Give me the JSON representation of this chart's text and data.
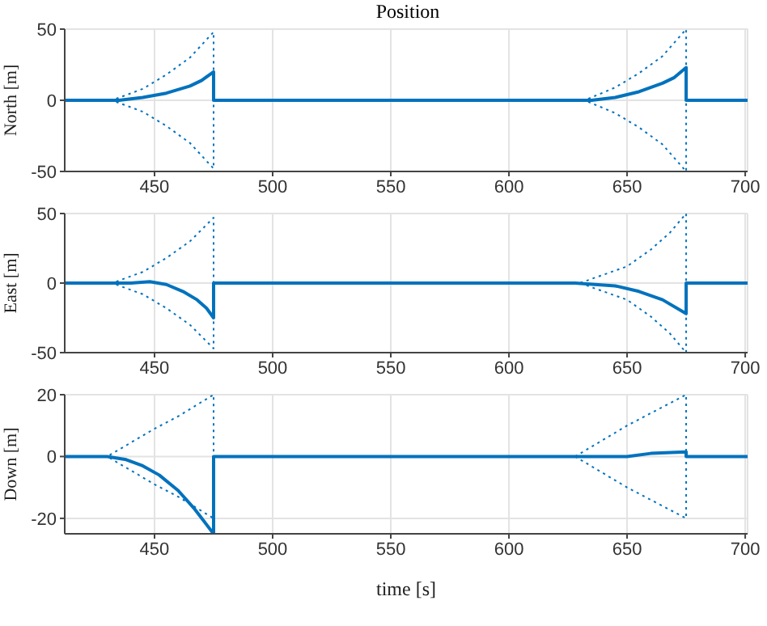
{
  "chart_data": [
    {
      "type": "line",
      "title": "Position",
      "ylabel": "North [m]",
      "xlim": [
        412,
        701
      ],
      "xticks": [
        450,
        500,
        550,
        600,
        650,
        700
      ],
      "ylim": [
        -50,
        50
      ],
      "yticks": [
        -50,
        0,
        50
      ],
      "grid": true,
      "series": [
        {
          "color": "#0072bd",
          "line_style": "dotted",
          "x": [
            412,
            432,
            445,
            455,
            465,
            475,
            475,
            632,
            645,
            655,
            665,
            675,
            675,
            701
          ],
          "values": [
            0,
            0,
            8,
            18,
            30,
            48,
            0,
            0,
            9,
            19,
            31,
            50,
            0,
            0
          ]
        },
        {
          "color": "#0072bd",
          "line_style": "dotted",
          "x": [
            412,
            432,
            445,
            455,
            465,
            475,
            475,
            632,
            645,
            655,
            665,
            675,
            675,
            701
          ],
          "values": [
            0,
            0,
            -8,
            -18,
            -30,
            -48,
            0,
            0,
            -9,
            -19,
            -31,
            -50,
            0,
            0
          ]
        },
        {
          "color": "#0072bd",
          "line_style": "solid",
          "x": [
            412,
            435,
            445,
            455,
            465,
            470,
            475,
            475,
            635,
            645,
            655,
            665,
            670,
            675,
            675,
            701
          ],
          "values": [
            0,
            0,
            2,
            5,
            10,
            14,
            20,
            0,
            0,
            2,
            6,
            12,
            16,
            23,
            0,
            0
          ]
        }
      ]
    },
    {
      "type": "line",
      "ylabel": "East [m]",
      "xlim": [
        412,
        701
      ],
      "xticks": [
        450,
        500,
        550,
        600,
        650,
        700
      ],
      "ylim": [
        -50,
        50
      ],
      "yticks": [
        -50,
        0,
        50
      ],
      "grid": true,
      "series": [
        {
          "color": "#0072bd",
          "line_style": "dotted",
          "x": [
            412,
            432,
            445,
            455,
            465,
            475,
            475,
            630,
            650,
            660,
            668,
            675,
            675,
            701
          ],
          "values": [
            0,
            0,
            8,
            18,
            30,
            47,
            0,
            0,
            12,
            24,
            36,
            50,
            0,
            0
          ]
        },
        {
          "color": "#0072bd",
          "line_style": "dotted",
          "x": [
            412,
            432,
            445,
            455,
            465,
            475,
            475,
            630,
            650,
            660,
            668,
            675,
            675,
            701
          ],
          "values": [
            0,
            0,
            -8,
            -18,
            -30,
            -47,
            0,
            0,
            -12,
            -24,
            -36,
            -50,
            0,
            0
          ]
        },
        {
          "color": "#0072bd",
          "line_style": "solid",
          "x": [
            412,
            440,
            448,
            455,
            462,
            468,
            472,
            475,
            475,
            628,
            645,
            655,
            665,
            675,
            675,
            701
          ],
          "values": [
            0,
            0,
            1,
            -1,
            -6,
            -12,
            -18,
            -25,
            0,
            0,
            -2,
            -6,
            -12,
            -22,
            0,
            0
          ]
        }
      ]
    },
    {
      "type": "line",
      "ylabel": "Down [m]",
      "xlabel": "time [s]",
      "xlim": [
        412,
        701
      ],
      "xticks": [
        450,
        500,
        550,
        600,
        650,
        700
      ],
      "ylim": [
        -25,
        20
      ],
      "yticks": [
        -20,
        0,
        20
      ],
      "grid": true,
      "series": [
        {
          "color": "#0072bd",
          "line_style": "dotted",
          "x": [
            412,
            430,
            450,
            460,
            475,
            475,
            628,
            650,
            675,
            675,
            701
          ],
          "values": [
            0,
            0,
            9,
            13,
            20,
            0,
            0,
            10,
            20,
            0,
            0
          ]
        },
        {
          "color": "#0072bd",
          "line_style": "dotted",
          "x": [
            412,
            430,
            450,
            460,
            475,
            475,
            628,
            650,
            675,
            675,
            701
          ],
          "values": [
            0,
            0,
            -9,
            -13,
            -20,
            0,
            0,
            -10,
            -20,
            0,
            0
          ]
        },
        {
          "color": "#0072bd",
          "line_style": "solid",
          "x": [
            412,
            430,
            438,
            445,
            452,
            460,
            467,
            475,
            475,
            640,
            650,
            660,
            675,
            675,
            701
          ],
          "values": [
            0,
            0,
            -1,
            -3,
            -6,
            -11,
            -17,
            -25,
            0,
            0,
            0,
            1,
            1.5,
            0,
            0
          ]
        }
      ]
    }
  ]
}
